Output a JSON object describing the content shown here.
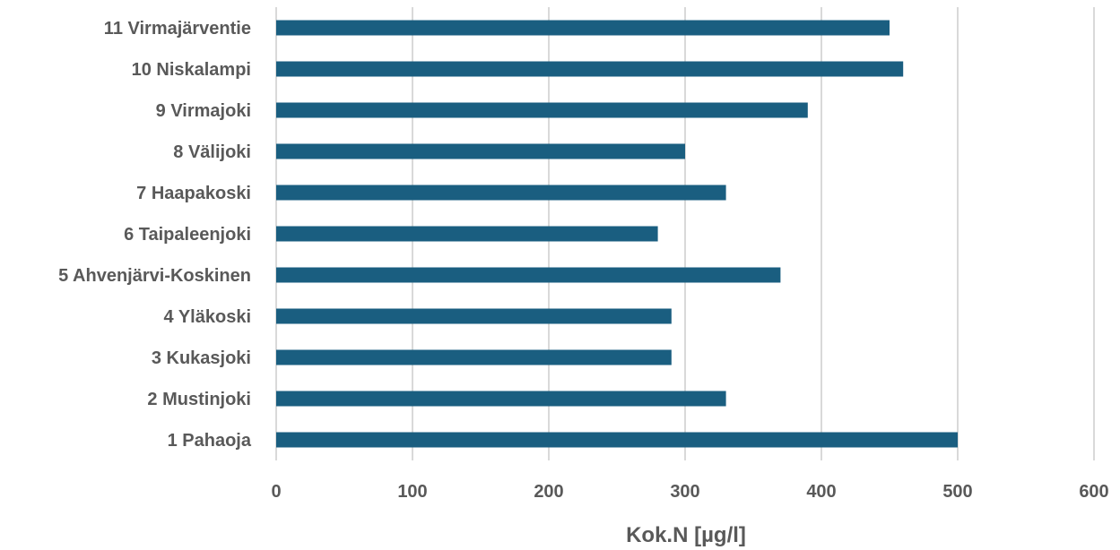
{
  "chart_data": {
    "type": "bar",
    "orientation": "horizontal",
    "title": "",
    "xlabel": "Kok.N [µg/l]",
    "ylabel": "",
    "xlim": [
      0,
      600
    ],
    "x_ticks": [
      0,
      100,
      200,
      300,
      400,
      500,
      600
    ],
    "grid": true,
    "legend": "none",
    "bar_color": "#1a5e80",
    "categories": [
      "11 Virmajärventie",
      "10 Niskalampi",
      "9 Virmajoki",
      "8 Välijoki",
      "7 Haapakoski",
      "6 Taipaleenjoki",
      "5 Ahvenjärvi-Koskinen",
      "4 Yläkoski",
      "3 Kukasjoki",
      "2 Mustinjoki",
      "1 Pahaoja"
    ],
    "values": [
      450,
      460,
      390,
      300,
      330,
      280,
      370,
      290,
      290,
      330,
      500
    ]
  }
}
